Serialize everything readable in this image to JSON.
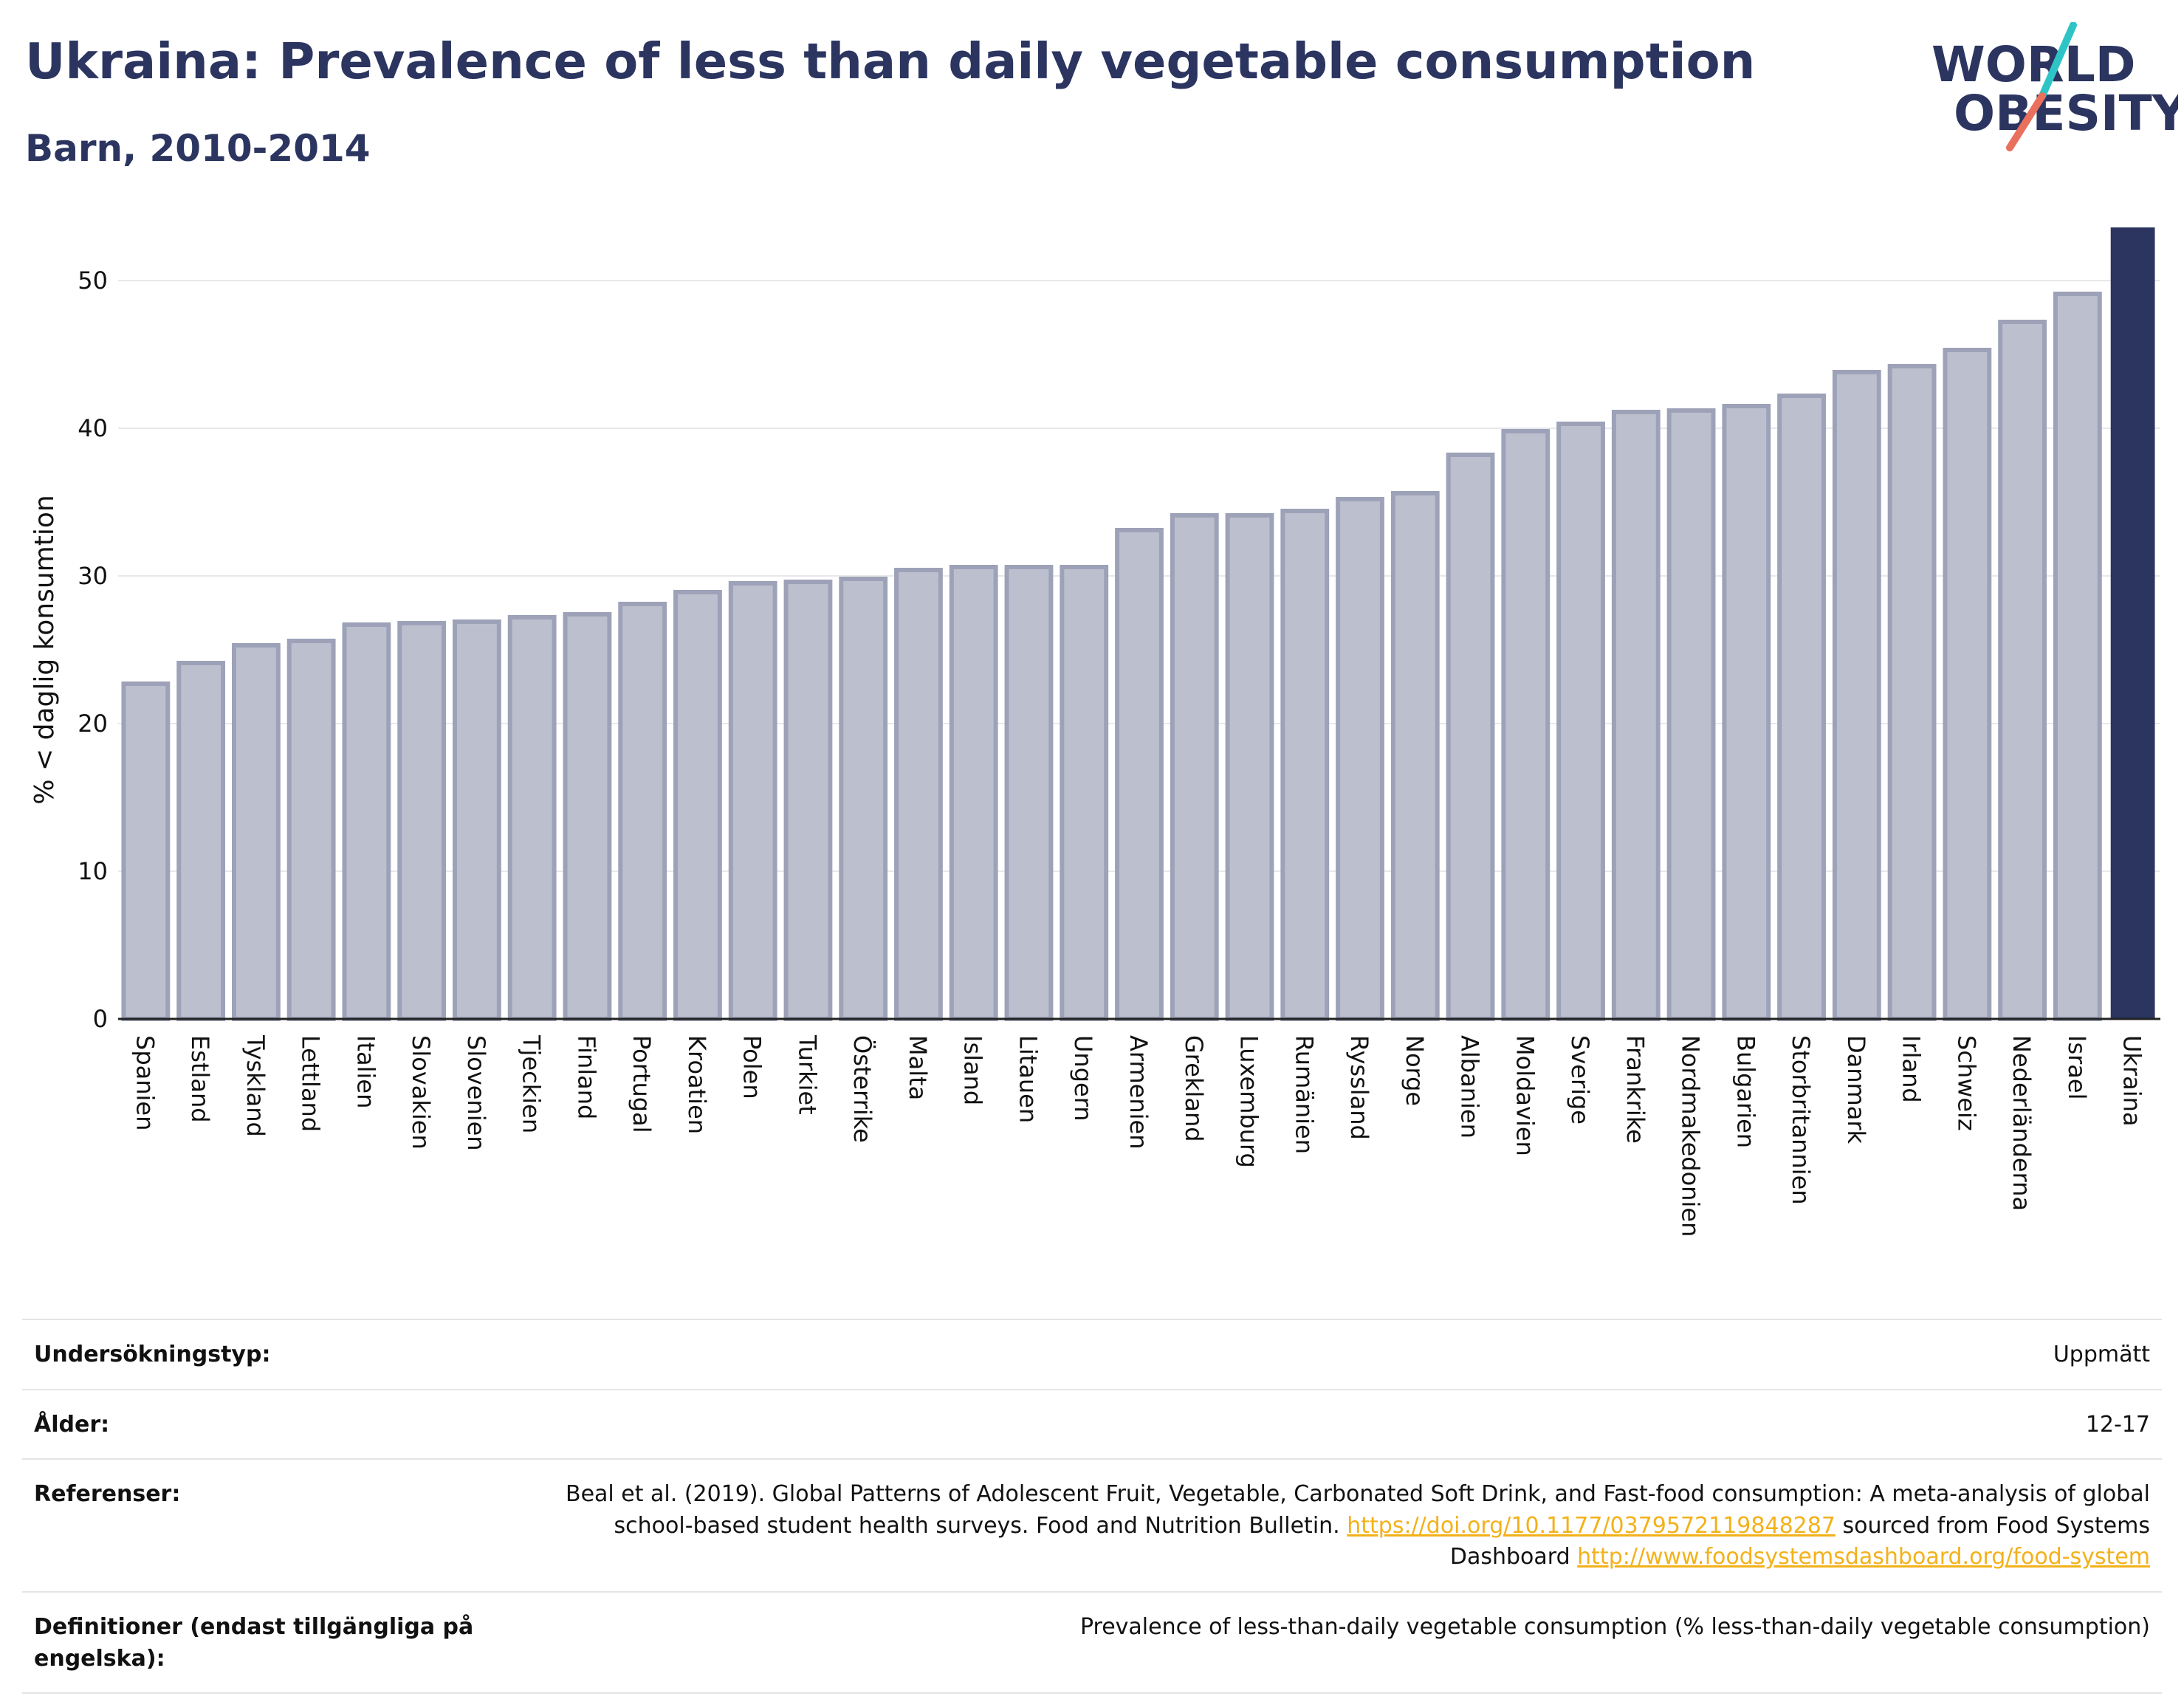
{
  "header": {
    "title": "Ukraina: Prevalence of less than daily vegetable consumption",
    "subtitle": "Barn, 2010-2014"
  },
  "logo": {
    "line1": "WORLD",
    "line2": "OBESITY",
    "colors": {
      "text": "#2b3560",
      "teal": "#2ec4c6",
      "coral": "#e8705c"
    }
  },
  "chart_data": {
    "type": "bar",
    "title": "Ukraina: Prevalence of less than daily vegetable consumption",
    "subtitle": "Barn, 2010-2014",
    "xlabel": "",
    "ylabel": "% < daglig konsumtion",
    "ylim": [
      0,
      54
    ],
    "yticks": [
      0,
      10,
      20,
      30,
      40,
      50
    ],
    "grid": true,
    "highlight": "Ukraina",
    "colors": {
      "bar": "#bcc0ce",
      "bar_edge": "#9da2b8",
      "highlight": "#2b3560",
      "grid": "#e8e8ec"
    },
    "categories": [
      "Spanien",
      "Estland",
      "Tyskland",
      "Lettland",
      "Italien",
      "Slovakien",
      "Slovenien",
      "Tjeckien",
      "Finland",
      "Portugal",
      "Kroatien",
      "Polen",
      "Turkiet",
      "Österrike",
      "Malta",
      "Island",
      "Litauen",
      "Ungern",
      "Armenien",
      "Grekland",
      "Luxemburg",
      "Rumänien",
      "Ryssland",
      "Norge",
      "Albanien",
      "Moldavien",
      "Sverige",
      "Frankrike",
      "Nordmakedonien",
      "Bulgarien",
      "Storbritannien",
      "Danmark",
      "Irland",
      "Schweiz",
      "Nederländerna",
      "Israel",
      "Ukraina"
    ],
    "values": [
      22.7,
      24.1,
      25.3,
      25.6,
      26.7,
      26.8,
      26.9,
      27.2,
      27.4,
      28.1,
      28.9,
      29.5,
      29.6,
      29.8,
      30.4,
      30.6,
      30.6,
      30.6,
      33.1,
      34.1,
      34.1,
      34.4,
      35.2,
      35.6,
      38.2,
      39.8,
      40.3,
      41.1,
      41.2,
      41.5,
      42.2,
      43.8,
      44.2,
      45.3,
      47.2,
      49.1,
      53.6
    ]
  },
  "meta": {
    "survey_type_label": "Undersökningstyp:",
    "survey_type_value": "Uppmätt",
    "age_label": "Ålder:",
    "age_value": "12-17",
    "references_label": "Referenser:",
    "references_text_1": "Beal et al. (2019). Global Patterns of Adolescent Fruit, Vegetable, Carbonated Soft Drink, and Fast-food consumption: A meta-analysis of global school-based student health surveys. Food and Nutrition Bulletin. ",
    "references_link_1": "https://doi.org/10.1177/0379572119848287",
    "references_text_2": " sourced from Food Systems Dashboard ",
    "references_link_2": "http://www.foodsystemsdashboard.org/food-system",
    "definitions_label": "Definitioner (endast tillgängliga på engelska):",
    "definitions_value": "Prevalence of less-than-daily vegetable consumption (% less-than-daily vegetable consumption)"
  }
}
